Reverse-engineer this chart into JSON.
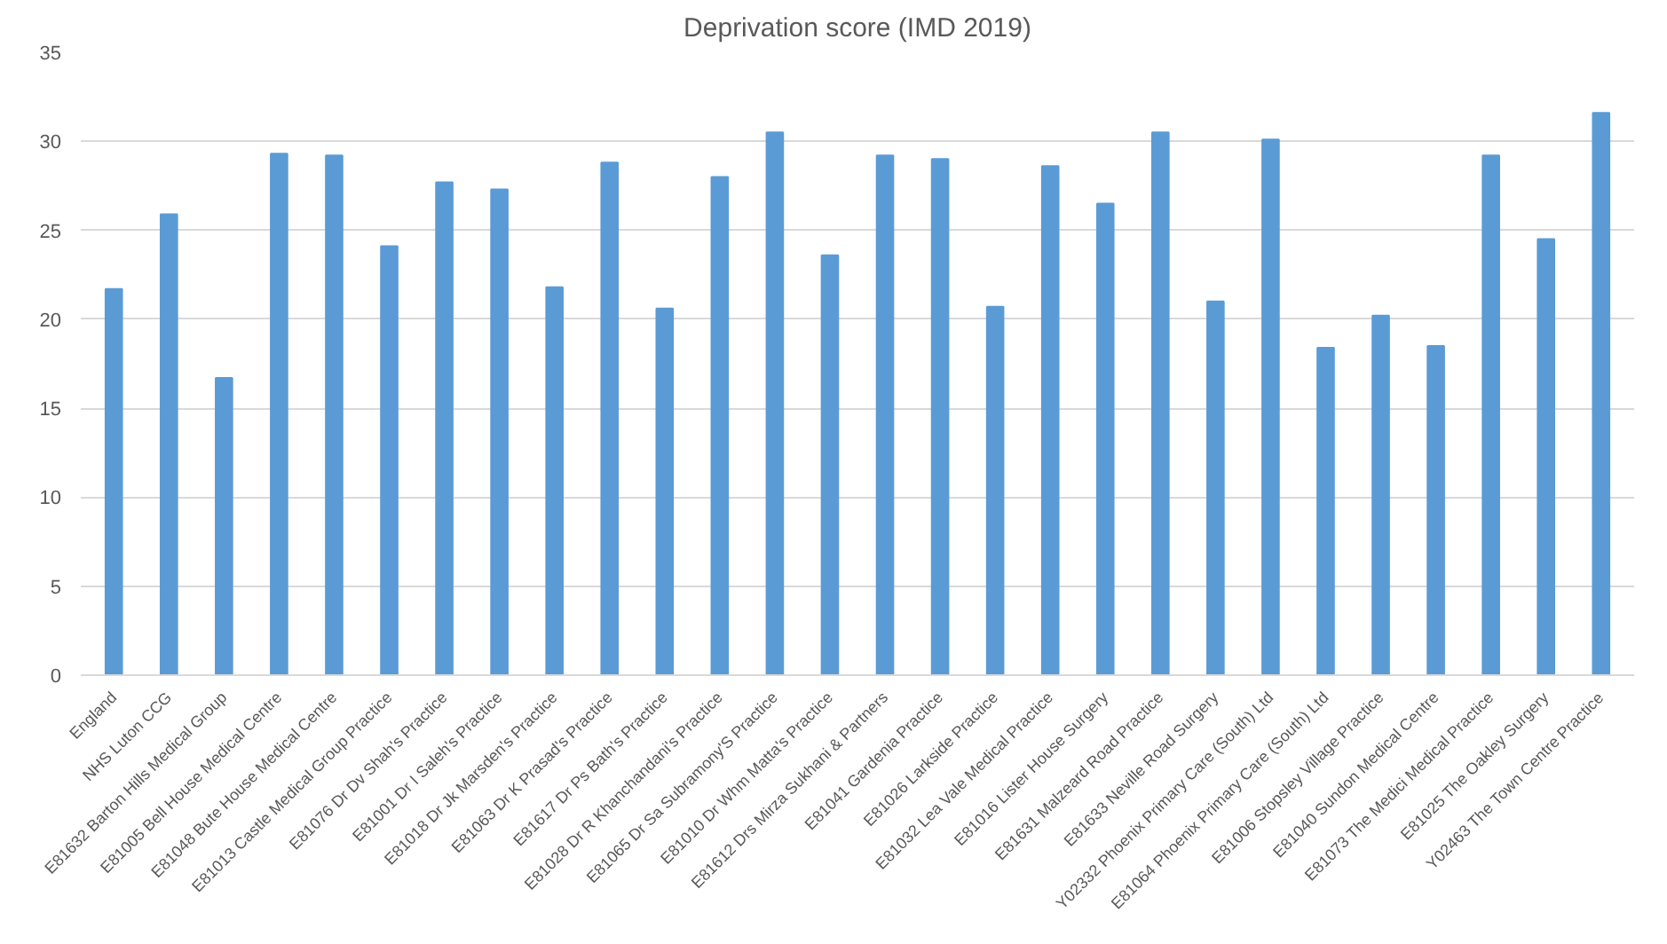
{
  "chart_data": {
    "type": "bar",
    "title": "Deprivation score (IMD 2019)",
    "categories": [
      "England",
      "NHS Luton CCG",
      "E81632 Barton Hills Medical Group",
      "E81005 Bell House Medical Centre",
      "E81048 Bute House Medical Centre",
      "E81013 Castle Medical Group Practice",
      "E81076 Dr Dv Shah's Practice",
      "E81001 Dr I Saleh's Practice",
      "E81018 Dr Jk Marsden's Practice",
      "E81063 Dr K Prasad's Practice",
      "E81617 Dr Ps Bath's Practice",
      "E81028 Dr R Khanchandani's Practice",
      "E81065 Dr Sa Subramony'S Practice",
      "E81010 Dr Whm Matta's Practice",
      "E81612 Drs Mirza Sukhani & Partners",
      "E81041 Gardenia Practice",
      "E81026 Larkside Practice",
      "E81032 Lea Vale Medical Practice",
      "E81016 Lister House Surgery",
      "E81631 Malzeard Road Practice",
      "E81633 Neville Road Surgery",
      "Y02332 Phoenix Primary Care (South) Ltd",
      "E81064 Phoenix Primary Care (South) Ltd",
      "E81006 Stopsley Village Practice",
      "E81040 Sundon Medical Centre",
      "E81073 The Medici Medical Practice",
      "E81025 The Oakley Surgery",
      "Y02463 The Town Centre Practice"
    ],
    "values": [
      21.7,
      25.9,
      16.7,
      29.3,
      29.2,
      24.1,
      27.7,
      27.3,
      21.8,
      28.8,
      20.6,
      28.0,
      30.5,
      23.6,
      29.2,
      29.0,
      20.7,
      28.6,
      26.5,
      30.5,
      21.0,
      30.1,
      18.4,
      20.2,
      18.5,
      29.2,
      24.5,
      31.6
    ],
    "color": "#5b9bd5",
    "ylim": [
      0,
      35
    ],
    "yticks": [
      0,
      5,
      10,
      15,
      20,
      25,
      30,
      35
    ],
    "grid": "y"
  }
}
